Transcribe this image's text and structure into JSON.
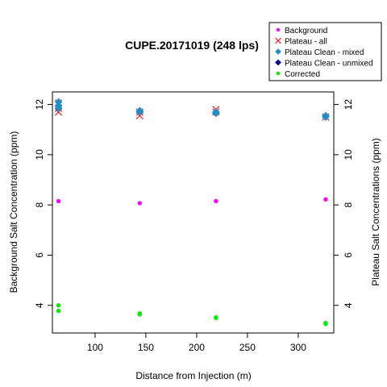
{
  "chart_data": {
    "type": "scatter",
    "title": "CUPE.20171019 (248 lps)",
    "xlabel": "Distance from Injection (m)",
    "ylabel_left": "Background Salt Concentration (ppm)",
    "ylabel_right": "Plateau Salt Concentrations (ppm)",
    "xlim": [
      58,
      335
    ],
    "ylim": [
      2.9,
      12.5
    ],
    "x_ticks": [
      100,
      150,
      200,
      250,
      300
    ],
    "y_ticks": [
      4,
      6,
      8,
      10,
      12
    ],
    "legend_position": "top-right",
    "series": [
      {
        "name": "Background",
        "marker": "dot",
        "color": "#ff00ff",
        "points": [
          [
            64,
            8.15
          ],
          [
            144,
            8.07
          ],
          [
            219,
            8.15
          ],
          [
            327,
            8.22
          ]
        ]
      },
      {
        "name": "Plateau - all",
        "marker": "x",
        "color": "#ff0000",
        "points": [
          [
            64,
            11.7
          ],
          [
            64,
            11.85
          ],
          [
            64,
            12.05
          ],
          [
            144,
            11.55
          ],
          [
            144,
            11.7
          ],
          [
            219,
            11.7
          ],
          [
            219,
            11.8
          ],
          [
            327,
            11.5
          ]
        ]
      },
      {
        "name": "Plateau Clean - mixed",
        "marker": "diamond",
        "color": "#1e90c8",
        "points": [
          [
            64,
            11.85
          ],
          [
            64,
            11.95
          ],
          [
            64,
            12.1
          ],
          [
            144,
            11.7
          ],
          [
            144,
            11.75
          ],
          [
            219,
            11.65
          ],
          [
            219,
            11.7
          ],
          [
            327,
            11.5
          ],
          [
            327,
            11.55
          ]
        ]
      },
      {
        "name": "Plateau Clean - unmixed",
        "marker": "diamond",
        "color": "#00008b",
        "points": []
      },
      {
        "name": "Corrected",
        "marker": "dot",
        "color": "#00ee00",
        "points": [
          [
            64,
            4.0
          ],
          [
            64,
            3.78
          ],
          [
            144,
            3.68
          ],
          [
            144,
            3.64
          ],
          [
            219,
            3.52
          ],
          [
            219,
            3.5
          ],
          [
            327,
            3.3
          ],
          [
            327,
            3.26
          ]
        ]
      }
    ]
  }
}
